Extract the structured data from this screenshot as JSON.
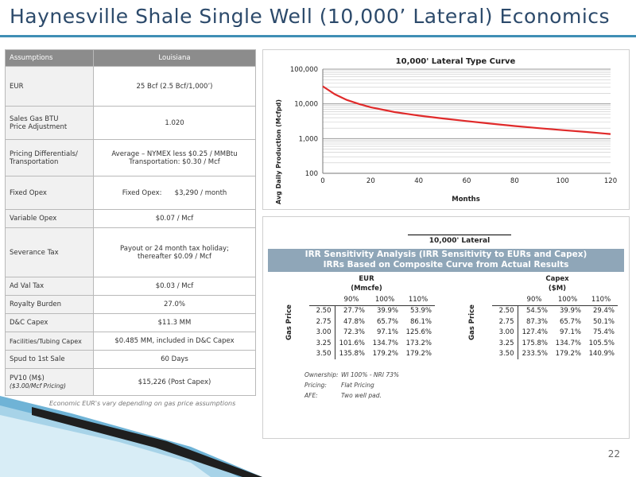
{
  "title": "Haynesville Shale Single Well (10,000’ Lateral) Economics",
  "assumptions": {
    "header": {
      "label": "Assumptions",
      "value": "Louisiana"
    },
    "rows": [
      {
        "label": "EUR",
        "value": "25 Bcf (2.5 Bcf/1,000’)"
      },
      {
        "label": "Sales Gas BTU",
        "label2": "Price Adjustment",
        "value": "1.020"
      },
      {
        "label": "Pricing Differentials/",
        "label2": "Transportation",
        "value": "Average – NYMEX less  $0.25  / MMBtu",
        "value2": "Transportation: $0.30 / Mcf"
      },
      {
        "label": "Fixed Opex",
        "value": "Fixed Opex:      $3,290 / month"
      },
      {
        "label": "Variable Opex",
        "value": "$0.07 / Mcf"
      },
      {
        "label": "Severance Tax",
        "value": "Payout or 24 month tax holiday;",
        "value2": "thereafter $0.09 / Mcf"
      },
      {
        "label": "Ad Val Tax",
        "value": "$0.03 / Mcf"
      },
      {
        "label": "Royalty Burden",
        "value": "27.0%"
      },
      {
        "label": "D&C Capex",
        "value": "$11.3 MM"
      },
      {
        "label": "Facilities/Tubing Capex",
        "value": "$0.485 MM, included in D&C Capex"
      },
      {
        "label": "Spud to 1st Sale",
        "value": "60 Days"
      },
      {
        "label": "PV10 (M$)",
        "label2": "($3.00/Mcf Pricing)",
        "value": "$15,226 (Post Capex)"
      }
    ],
    "footnote": "Economic EUR's vary depending on gas price assumptions"
  },
  "chart_data": {
    "type": "line",
    "title": "10,000' Lateral Type Curve",
    "xlabel": "Months",
    "ylabel": "Avg Daily Production (Mcfpd)",
    "y_scale": "log",
    "xlim": [
      0,
      120
    ],
    "ylim": [
      100,
      100000
    ],
    "x_ticks": [
      "0",
      "20",
      "40",
      "60",
      "80",
      "100",
      "120"
    ],
    "y_ticks": [
      "100",
      "1,000",
      "10,000",
      "100,000"
    ],
    "grid": true,
    "series": [
      {
        "color": "#e02a2a",
        "x": [
          0,
          2,
          5,
          10,
          15,
          20,
          30,
          40,
          50,
          60,
          70,
          80,
          90,
          100,
          110,
          120
        ],
        "y": [
          32000,
          26000,
          19000,
          13000,
          10000,
          8000,
          5800,
          4600,
          3800,
          3200,
          2700,
          2300,
          2000,
          1750,
          1550,
          1350
        ]
      }
    ]
  },
  "irr": {
    "lateral_label": "10,000' Lateral",
    "banner_line1": "IRR Sensitivity Analysis (IRR Sensitivity to EURs and Capex)",
    "banner_line2": "IRRs Based on Composite Curve from Actual Results",
    "gas_price_label": "Gas Price",
    "eur": {
      "head1": "EUR",
      "head2": "(Mmcfe)",
      "cols": [
        "90%",
        "100%",
        "110%"
      ],
      "rows": [
        {
          "price": "2.50",
          "vals": [
            "27.7%",
            "39.9%",
            "53.9%"
          ]
        },
        {
          "price": "2.75",
          "vals": [
            "47.8%",
            "65.7%",
            "86.1%"
          ]
        },
        {
          "price": "3.00",
          "vals": [
            "72.3%",
            "97.1%",
            "125.6%"
          ]
        },
        {
          "price": "3.25",
          "vals": [
            "101.6%",
            "134.7%",
            "173.2%"
          ]
        },
        {
          "price": "3.50",
          "vals": [
            "135.8%",
            "179.2%",
            "179.2%"
          ]
        }
      ]
    },
    "capex": {
      "head1": "Capex",
      "head2": "($M)",
      "cols": [
        "90%",
        "100%",
        "110%"
      ],
      "rows": [
        {
          "price": "2.50",
          "vals": [
            "54.5%",
            "39.9%",
            "29.4%"
          ]
        },
        {
          "price": "2.75",
          "vals": [
            "87.3%",
            "65.7%",
            "50.1%"
          ]
        },
        {
          "price": "3.00",
          "vals": [
            "127.4%",
            "97.1%",
            "75.4%"
          ]
        },
        {
          "price": "3.25",
          "vals": [
            "175.8%",
            "134.7%",
            "105.5%"
          ]
        },
        {
          "price": "3.50",
          "vals": [
            "233.5%",
            "179.2%",
            "140.9%"
          ]
        }
      ]
    },
    "notes": [
      {
        "key": "Ownership:",
        "value": "WI 100% - NRI 73%"
      },
      {
        "key": "Pricing:",
        "value": "Flat Pricing"
      },
      {
        "key": "AFE:",
        "value": "Two well pad."
      }
    ]
  },
  "page_number": "22",
  "colors": {
    "accent": "#3f8fb5",
    "title": "#2c4a6b",
    "banner": "#8fa6b8",
    "curve": "#e02a2a"
  }
}
